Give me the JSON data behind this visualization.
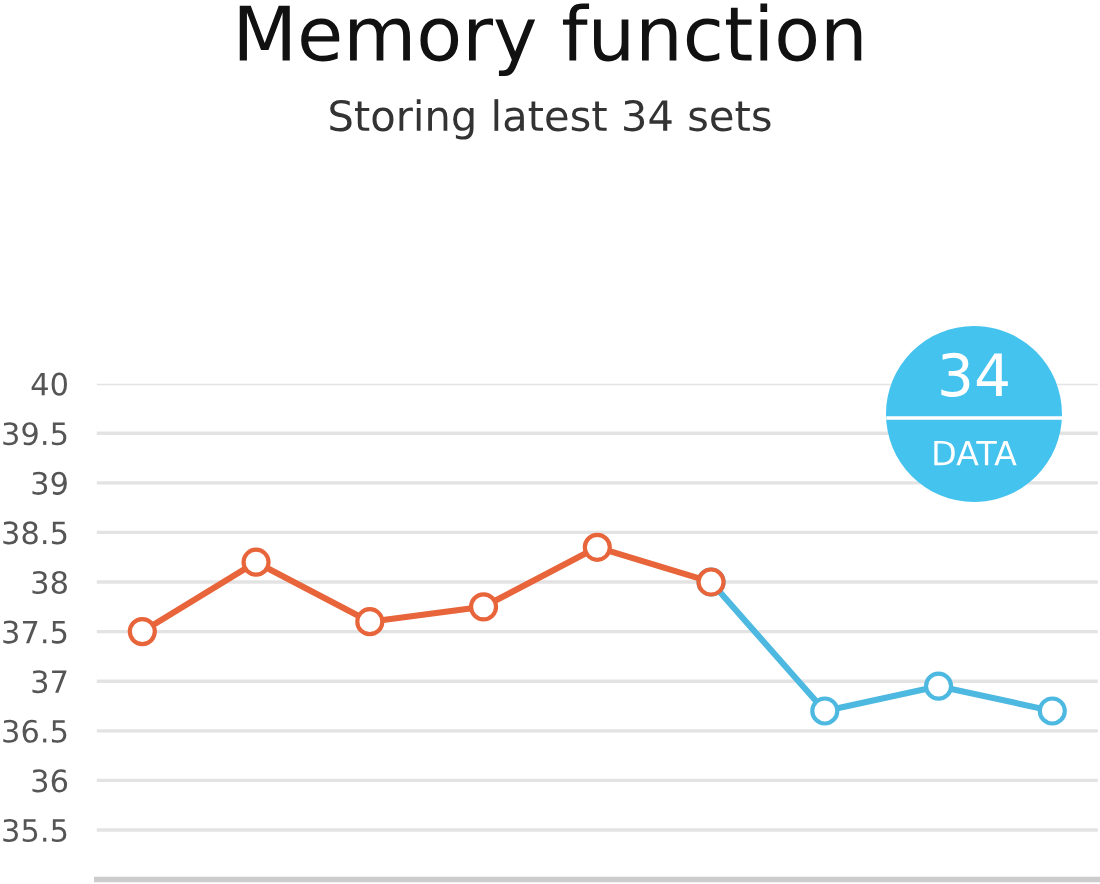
{
  "chart_data": {
    "type": "line",
    "title": "Memory function",
    "subtitle": "Storing latest 34 sets",
    "categories": [
      null,
      null,
      null,
      null,
      null,
      null,
      null,
      null,
      null
    ],
    "series": [
      {
        "color": "#4db8e0",
        "values": [
          null,
          null,
          null,
          null,
          null,
          38.0,
          36.7,
          36.95,
          36.7
        ]
      },
      {
        "color": "#e8643a",
        "values": [
          37.5,
          38.2,
          37.6,
          37.75,
          38.35,
          38.0,
          null,
          null,
          null
        ]
      }
    ],
    "ylim": [
      35,
      40
    ],
    "yticks": [
      35.5,
      36,
      36.5,
      37,
      37.5,
      38,
      38.5,
      39,
      39.5,
      40
    ],
    "grid": "y",
    "marker": "circle",
    "line_style": "solid",
    "legend": false,
    "annotations": [
      "34",
      "DATA"
    ]
  }
}
